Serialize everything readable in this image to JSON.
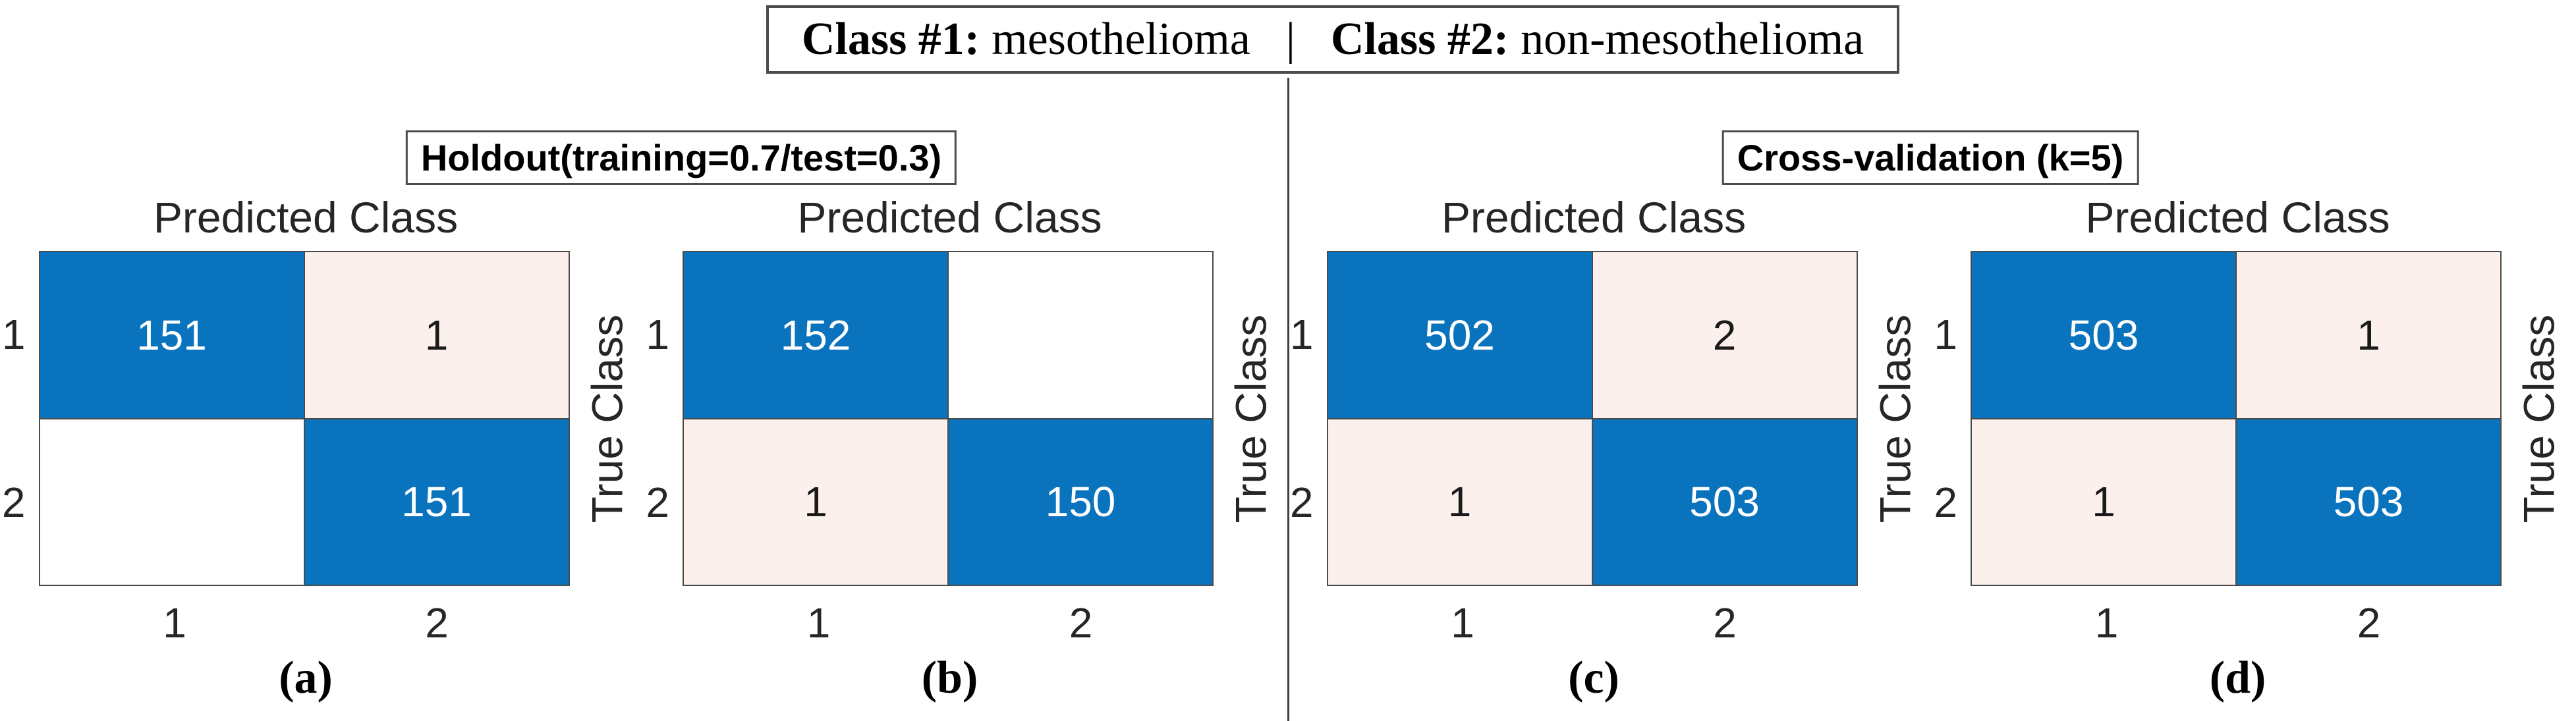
{
  "legend": {
    "class1_label": "Class #1:",
    "class1_value": "mesothelioma",
    "separator": "|",
    "class2_label": "Class #2:",
    "class2_value": "non-mesothelioma"
  },
  "sections": [
    {
      "header": "Holdout(training=0.7/test=0.3)"
    },
    {
      "header": "Cross-validation (k=5)"
    }
  ],
  "chart_data": [
    {
      "type": "heatmap",
      "caption": "(a)",
      "section": "Holdout(training=0.7/test=0.3)",
      "xlabel": "Predicted Class",
      "ylabel": "True Class",
      "x_ticks": [
        "1",
        "2"
      ],
      "y_ticks": [
        "1",
        "2"
      ],
      "rows": [
        [
          "151",
          "1"
        ],
        [
          "",
          "151"
        ]
      ]
    },
    {
      "type": "heatmap",
      "caption": "(b)",
      "section": "Holdout(training=0.7/test=0.3)",
      "xlabel": "Predicted Class",
      "ylabel": "True Class",
      "x_ticks": [
        "1",
        "2"
      ],
      "y_ticks": [
        "1",
        "2"
      ],
      "rows": [
        [
          "152",
          ""
        ],
        [
          "1",
          "150"
        ]
      ]
    },
    {
      "type": "heatmap",
      "caption": "(c)",
      "section": "Cross-validation (k=5)",
      "xlabel": "Predicted Class",
      "ylabel": "True Class",
      "x_ticks": [
        "1",
        "2"
      ],
      "y_ticks": [
        "1",
        "2"
      ],
      "rows": [
        [
          "502",
          "2"
        ],
        [
          "1",
          "503"
        ]
      ]
    },
    {
      "type": "heatmap",
      "caption": "(d)",
      "section": "Cross-validation (k=5)",
      "xlabel": "Predicted Class",
      "ylabel": "True Class",
      "x_ticks": [
        "1",
        "2"
      ],
      "y_ticks": [
        "1",
        "2"
      ],
      "rows": [
        [
          "503",
          "1"
        ],
        [
          "1",
          "503"
        ]
      ]
    }
  ],
  "colors": {
    "diag": "#0A73BE",
    "off": "#FCF0EC",
    "empty": "#FFFFFF",
    "text_on_diag": "#FFFFFF",
    "text_on_off": "#1A1A1A",
    "grid_line": "#4A4A4A",
    "axis_text": "#262626",
    "box_border": "#4C4C4C"
  }
}
